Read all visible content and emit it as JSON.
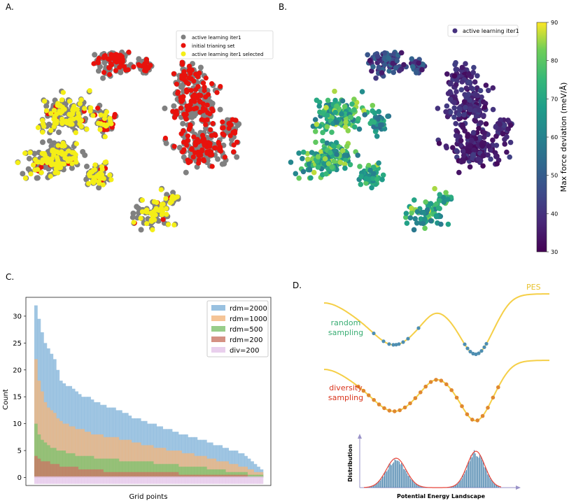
{
  "panels": {
    "a": {
      "label": "A."
    },
    "b": {
      "label": "B."
    },
    "c": {
      "label": "C."
    },
    "d": {
      "label": "D."
    }
  },
  "colors": {
    "gray": "#808080",
    "red": "#e8120c",
    "yellow": "#f4ee17",
    "pes": "#f5cf47",
    "random": "#4e8eb1",
    "diversity": "#e0882f",
    "random_label": "#3aad74",
    "diversity_label": "#d9341c",
    "dist_hist": "#3f7ca8",
    "dist_fit": "#e8453a",
    "axis_arrow": "#9a93c8"
  },
  "chart_data": [
    {
      "type": "scatter",
      "panel": "A.",
      "description": "t-SNE embedding of configurations",
      "legend": [
        "active learning iter1",
        "initial trianing set",
        "active learning iter1 selected"
      ],
      "legend_position": "top-right"
    },
    {
      "type": "scatter",
      "panel": "B.",
      "description": "t-SNE embedding colored by max force deviation",
      "legend": [
        "active learning iter1"
      ],
      "legend_position": "top-right",
      "colorbar": {
        "label": "Max force deviation (meV/Å)",
        "range": [
          30,
          90
        ],
        "ticks": [
          "30",
          "40",
          "50",
          "60",
          "70",
          "80",
          "90"
        ]
      }
    },
    {
      "type": "bar",
      "panel": "C.",
      "xlabel": "Grid points",
      "ylabel": "Count",
      "ylim": [
        -1.5,
        33.5
      ],
      "yticks": [
        "0",
        "5",
        "10",
        "15",
        "20",
        "25",
        "30"
      ],
      "legend_position": "top-right",
      "series": [
        {
          "name": "rdm=2000",
          "color": "#7fb2d8",
          "values": [
            32,
            29.5,
            27,
            25,
            24,
            23,
            22,
            20,
            18,
            17.5,
            17,
            17,
            16.5,
            16,
            15.5,
            15,
            15,
            15,
            14.5,
            14,
            14,
            13.5,
            13.5,
            13,
            13,
            13,
            12.5,
            12.5,
            12,
            12,
            11.5,
            11,
            11,
            11,
            10.5,
            10.5,
            10,
            10,
            10,
            9.5,
            9.5,
            9,
            9,
            9,
            8.5,
            8.5,
            8,
            8,
            8,
            7.5,
            7.5,
            7.5,
            7,
            7,
            7,
            6.5,
            6.5,
            6,
            6,
            6,
            5.5,
            5.5,
            5,
            5,
            5,
            4.5,
            4.5,
            4,
            3.5,
            3,
            2.5,
            2,
            1.5
          ]
        },
        {
          "name": "rdm=1000",
          "color": "#f3b57c",
          "values": [
            22,
            18,
            16,
            14,
            13,
            12.5,
            12,
            11,
            10.5,
            10,
            10,
            9.5,
            9.5,
            9,
            9,
            9,
            8.5,
            8.5,
            8,
            8,
            8,
            8,
            7.5,
            7.5,
            7.5,
            7.5,
            7.5,
            7,
            7,
            7,
            7,
            6.5,
            6.5,
            6.5,
            6,
            6,
            6,
            6,
            5.5,
            5.5,
            5.5,
            5.5,
            5,
            5,
            5,
            5,
            5,
            4.5,
            4.5,
            4.5,
            4.5,
            4,
            4,
            4,
            4,
            3.5,
            3.5,
            3.5,
            3,
            3,
            3,
            3,
            2.5,
            2.5,
            2.5,
            2,
            2,
            2,
            1.5,
            1.5,
            1,
            1,
            1
          ]
        },
        {
          "name": "rdm=500",
          "color": "#7ec16d",
          "values": [
            10,
            8,
            7,
            6.5,
            6,
            5.5,
            5.5,
            5,
            5,
            5,
            4.5,
            4.5,
            4.5,
            4,
            4,
            4,
            4,
            4,
            4,
            3.5,
            3.5,
            3.5,
            3.5,
            3.5,
            3.5,
            3.5,
            3.5,
            3,
            3,
            3,
            3,
            3,
            3,
            3,
            3,
            3,
            3,
            3,
            2.5,
            2.5,
            2.5,
            2.5,
            2.5,
            2.5,
            2.5,
            2.5,
            2,
            2,
            2,
            2,
            2,
            2,
            2,
            2,
            2,
            1.5,
            1.5,
            1.5,
            1.5,
            1.5,
            1.5,
            1,
            1,
            1,
            1,
            1,
            1,
            1,
            0.5,
            0.5,
            0.5,
            0.5,
            0.5
          ]
        },
        {
          "name": "rdm=200",
          "color": "#c97564",
          "values": [
            4,
            3.5,
            3,
            3,
            3,
            2.5,
            2.5,
            2.5,
            2,
            2,
            2,
            2,
            2,
            2,
            1.5,
            1.5,
            1.5,
            1.5,
            1.5,
            1.5,
            1.5,
            1.5,
            1,
            1,
            1,
            1,
            1,
            1,
            1,
            1,
            1,
            1,
            1,
            1,
            1,
            1,
            1,
            1,
            1,
            1,
            1,
            1,
            1,
            1,
            1,
            1,
            0.5,
            0.5,
            0.5,
            0.5,
            0.5,
            0.5,
            0.5,
            0.5,
            0.5,
            0.5,
            0.5,
            0.5,
            0.5,
            0.5,
            0.5,
            0.5,
            0.5,
            0.5,
            0.5,
            0.5,
            0.5,
            0.5,
            0,
            0,
            0,
            0,
            0
          ]
        },
        {
          "name": "div=200",
          "color": "#e3c3e8",
          "values": [
            -1,
            -1,
            -1,
            -1,
            -1,
            -1,
            -1,
            -1,
            -1,
            -1,
            -1,
            -1,
            -1,
            -1,
            -1,
            -1,
            -1,
            -1,
            -1,
            -1,
            -1,
            -1,
            -1,
            -1,
            -1,
            -1,
            -1,
            -1,
            -1,
            -1,
            -1,
            -1,
            -1,
            -1,
            -1,
            -1,
            -1,
            -1,
            -1,
            -1,
            -1,
            -1,
            -1,
            -1,
            -1,
            -1,
            -1,
            -1,
            -1,
            -1,
            -1,
            -1,
            -1,
            -1,
            -1,
            -1,
            -1,
            -1,
            -1,
            -1,
            -1,
            -1,
            -1,
            -1,
            -1,
            -1,
            -1,
            -1,
            -1,
            -1,
            -1,
            -1,
            -1
          ]
        }
      ]
    },
    {
      "type": "line",
      "panel": "D.",
      "curve_label": "PES",
      "random_label_lines": [
        "random",
        "sampling"
      ],
      "diversity_label_lines": [
        "diversity",
        "sampling"
      ],
      "xlabel": "Potential Energy Landscape",
      "ylabel": "Distribution"
    }
  ]
}
